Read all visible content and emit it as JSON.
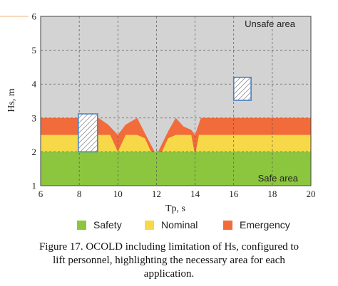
{
  "chart_data": {
    "type": "area",
    "xlabel": "Tp, s",
    "ylabel": "Hs, m",
    "xlim": [
      6,
      20
    ],
    "ylim": [
      1,
      6
    ],
    "x_ticks": [
      6,
      8,
      10,
      12,
      14,
      16,
      18,
      20
    ],
    "y_ticks": [
      1,
      2,
      3,
      4,
      5,
      6
    ],
    "grid": true,
    "legend_position": "bottom",
    "annotations": [
      {
        "text": "Unsafe area"
      },
      {
        "text": "Safe area"
      }
    ],
    "series": [
      {
        "name": "Emergency",
        "color": "#f26b3a",
        "x": [
          6,
          7,
          8,
          9,
          9.5,
          10,
          10.4,
          11,
          11.4,
          12,
          12.6,
          13,
          13.4,
          13.8,
          14,
          14.3,
          15,
          16,
          17,
          18,
          19,
          20
        ],
        "y": [
          3.0,
          3.0,
          3.0,
          3.0,
          2.8,
          2.5,
          2.8,
          3.0,
          2.55,
          1.9,
          2.6,
          3.0,
          2.75,
          2.65,
          2.5,
          3.0,
          3.0,
          3.0,
          3.0,
          3.0,
          3.0,
          3.0
        ]
      },
      {
        "name": "Nominal",
        "color": "#f7d848",
        "x": [
          6,
          7,
          8,
          9,
          9.6,
          10,
          10.4,
          11,
          11.4,
          11.8,
          12,
          12.2,
          12.6,
          13,
          13.4,
          13.8,
          14,
          14.2,
          15,
          16,
          17,
          18,
          19,
          20
        ],
        "y": [
          2.5,
          2.5,
          2.5,
          2.5,
          2.5,
          2.0,
          2.5,
          2.5,
          2.4,
          1.9,
          1.5,
          1.9,
          2.4,
          2.5,
          2.5,
          2.5,
          1.9,
          2.5,
          2.5,
          2.5,
          2.5,
          2.5,
          2.5,
          2.5
        ]
      },
      {
        "name": "Safety",
        "color": "#8cc63f",
        "x": [
          6,
          8,
          10,
          12,
          14,
          16,
          18,
          20
        ],
        "y": [
          2.0,
          2.0,
          2.0,
          2.0,
          2.0,
          2.0,
          2.0,
          2.0
        ]
      }
    ],
    "highlight_boxes": [
      {
        "x": [
          7.95,
          8.95
        ],
        "y": [
          2.0,
          3.12
        ]
      },
      {
        "x": [
          16.0,
          16.9
        ],
        "y": [
          3.52,
          4.2
        ]
      }
    ]
  },
  "legend": [
    {
      "label": "Safety",
      "color": "#8cc63f"
    },
    {
      "label": "Nominal",
      "color": "#f7d848"
    },
    {
      "label": "Emergency",
      "color": "#f26b3a"
    }
  ],
  "caption": {
    "line1": "Figure 17.   OCOLD including limitation of Hs, configured to",
    "line2": "lift personnel, highlighting the necessary area for each",
    "line3": "application."
  }
}
